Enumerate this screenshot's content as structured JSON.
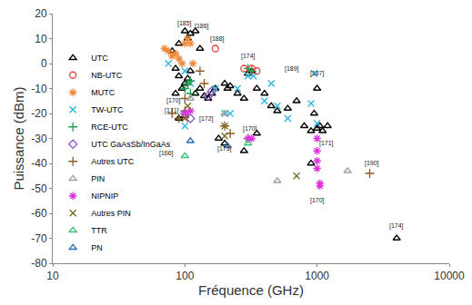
{
  "chart_data": {
    "type": "scatter",
    "x_label": "Fréquence (GHz)",
    "y_label": "Puissance (dBm)",
    "log": "x",
    "xlim": [
      10,
      10000
    ],
    "xticks": [
      10,
      100,
      1000,
      10000
    ],
    "ylim": [
      -80,
      20
    ],
    "yticks": [
      -80,
      -70,
      -60,
      -50,
      -40,
      -30,
      -20,
      -10,
      0,
      10,
      20
    ],
    "grid": false,
    "legend": "left",
    "series": [
      {
        "name": "UTC",
        "color": "#000000",
        "marker": "triangle-up-open",
        "x": [
          80,
          90,
          100,
          105,
          110,
          120,
          85,
          90,
          95,
          100,
          105,
          110,
          120,
          130,
          140,
          150,
          160,
          170,
          200,
          210,
          220,
          250,
          280,
          300,
          320,
          350,
          400,
          450,
          500,
          600,
          700,
          800,
          900,
          950,
          1000,
          1000,
          1050,
          1100,
          1200,
          180,
          200,
          280,
          350,
          90,
          100,
          85,
          4000,
          900,
          130
        ],
        "y": [
          5,
          8,
          13,
          10,
          12,
          13,
          -2,
          -5,
          -10,
          -8,
          -6,
          -3,
          -12,
          -10,
          -13,
          -14,
          -12,
          -10,
          -8,
          -10,
          -9,
          -12,
          -14,
          -4,
          -3,
          -10,
          -12,
          -17,
          -19,
          -18,
          -15,
          -25,
          -27,
          -20,
          -10,
          -26,
          -25,
          -27,
          -25,
          -30,
          -32,
          -35,
          -28,
          -22,
          -21,
          -12,
          -70,
          -40,
          6
        ]
      },
      {
        "name": "NB-UTC",
        "color": "#e8403a",
        "marker": "circle-open",
        "x": [
          170,
          280,
          320,
          350
        ],
        "y": [
          6,
          -2,
          -2,
          -3
        ]
      },
      {
        "name": "MUTC",
        "color": "#f08a3c",
        "marker": "asterisk-open",
        "x": [
          75,
          80,
          85,
          90,
          95,
          100,
          105,
          110,
          115,
          70
        ],
        "y": [
          5,
          3,
          4,
          2,
          0,
          8,
          10,
          8,
          0,
          6
        ]
      },
      {
        "name": "TW-UTC",
        "color": "#2cb5e0",
        "marker": "x-thin-open",
        "x": [
          100,
          110,
          170,
          200,
          220,
          250,
          300,
          330,
          400,
          450,
          500,
          600,
          900,
          950,
          1000,
          100,
          75
        ],
        "y": [
          -3,
          -8,
          -10,
          -20,
          -20,
          -10,
          -5,
          -5,
          -15,
          -8,
          -17,
          -22,
          -16,
          -4,
          -24,
          -25,
          0
        ]
      },
      {
        "name": "RCE-UTC",
        "color": "#1e9e4a",
        "marker": "cross-thin-open",
        "x": [
          100,
          105,
          110,
          300,
          320,
          110
        ],
        "y": [
          -10,
          -8,
          -7,
          -2,
          -3,
          -12
        ]
      },
      {
        "name": "UTC GaAsSb/InGaAs",
        "color": "#8e5cc4",
        "marker": "diamond-open",
        "x": [
          150,
          160,
          100,
          110
        ],
        "y": [
          -13,
          -11,
          -20,
          -22
        ]
      },
      {
        "name": "Autres UTC",
        "color": "#8b5a1e",
        "marker": "cross-thin-open",
        "x": [
          80,
          90,
          100,
          130,
          140,
          200,
          220,
          300,
          2500,
          100
        ],
        "y": [
          -20,
          -22,
          -14,
          -3,
          -8,
          -25,
          -28,
          -30,
          -44,
          -19
        ]
      },
      {
        "name": "PIN",
        "color": "#a0a0a0",
        "marker": "triangle-up-open",
        "x": [
          110,
          500,
          1700,
          200
        ],
        "y": [
          -14,
          -47,
          -43,
          -20
        ]
      },
      {
        "name": "NIPNIP",
        "color": "#e030e0",
        "marker": "asterisk-open",
        "x": [
          100,
          110,
          300,
          320,
          1000,
          1000,
          1000,
          1000,
          1050,
          1050
        ],
        "y": [
          -20,
          -19,
          -30,
          -30,
          -30,
          -35,
          -39,
          -42,
          -48,
          -49
        ]
      },
      {
        "name": "Autres PIN",
        "color": "#7a6a20",
        "marker": "x-thin-open",
        "x": [
          100,
          105,
          200,
          200,
          700
        ],
        "y": [
          -22,
          -17,
          -25,
          -29,
          -45
        ]
      },
      {
        "name": "TTR",
        "color": "#3cc07a",
        "marker": "triangle-up-open",
        "x": [
          100,
          300
        ],
        "y": [
          -37,
          -32
        ]
      },
      {
        "name": "PN",
        "color": "#2a6fb8",
        "marker": "triangle-up-open",
        "x": [
          110,
          210
        ],
        "y": [
          -31,
          -33
        ]
      }
    ],
    "annotations": [
      {
        "text": "[185]",
        "x": 100,
        "y": 16
      },
      {
        "text": "[186]",
        "x": 135,
        "y": 15
      },
      {
        "text": "[188]",
        "x": 175,
        "y": 10
      },
      {
        "text": "[174]",
        "x": 300,
        "y": 3
      },
      {
        "text": "[189]",
        "x": 650,
        "y": -2
      },
      {
        "text": "[187]",
        "x": 1000,
        "y": -4
      },
      {
        "text": "[170]",
        "x": 82,
        "y": -15
      },
      {
        "text": "[171]",
        "x": 80,
        "y": -19
      },
      {
        "text": "[172]",
        "x": 145,
        "y": -22
      },
      {
        "text": "[173]",
        "x": 200,
        "y": -34
      },
      {
        "text": "[170]",
        "x": 310,
        "y": -26
      },
      {
        "text": "[166]",
        "x": 72,
        "y": -36
      },
      {
        "text": "[171]",
        "x": 1180,
        "y": -32
      },
      {
        "text": "[170]",
        "x": 1000,
        "y": -55
      },
      {
        "text": "[190]",
        "x": 2600,
        "y": -40
      },
      {
        "text": "[174]",
        "x": 4000,
        "y": -65
      }
    ]
  }
}
